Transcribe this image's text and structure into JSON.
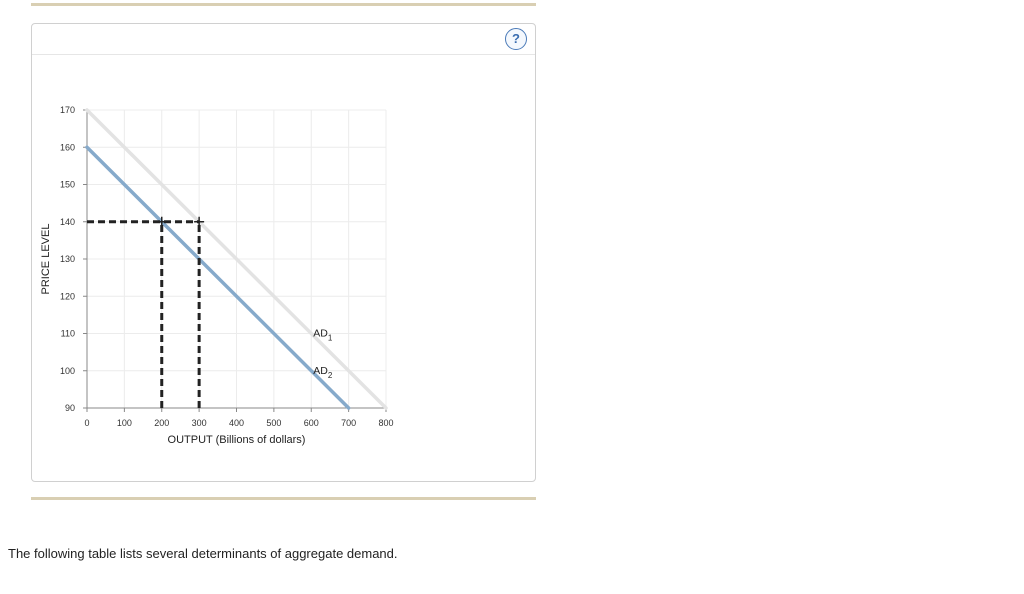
{
  "help": {
    "icon": "question-mark-icon",
    "label": "?"
  },
  "chart_data": {
    "type": "line",
    "xlabel": "OUTPUT (Billions of dollars)",
    "ylabel": "PRICE LEVEL",
    "xlim": [
      0,
      800
    ],
    "ylim": [
      90,
      170
    ],
    "xticks": [
      0,
      100,
      200,
      300,
      400,
      500,
      600,
      700,
      800
    ],
    "yticks": [
      90,
      100,
      110,
      120,
      130,
      140,
      150,
      160,
      170
    ],
    "grid": true,
    "series": [
      {
        "name": "AD1",
        "label_main": "AD",
        "label_sub": "1",
        "color": "#e3e3e3",
        "x": [
          0,
          800
        ],
        "y": [
          170,
          90
        ]
      },
      {
        "name": "AD2",
        "label_main": "AD",
        "label_sub": "2",
        "color": "#86aacb",
        "x": [
          0,
          700
        ],
        "y": [
          160,
          90
        ]
      }
    ],
    "guides": [
      {
        "type": "horizontal",
        "y": 140,
        "x_from": 0,
        "x_to": 300
      },
      {
        "type": "vertical",
        "x": 200,
        "y_from": 90,
        "y_to": 140
      },
      {
        "type": "vertical",
        "x": 300,
        "y_from": 90,
        "y_to": 140
      }
    ],
    "markers": [
      {
        "x": 200,
        "y": 140
      },
      {
        "x": 300,
        "y": 140
      }
    ]
  },
  "caption": "The following table lists several determinants of aggregate demand."
}
